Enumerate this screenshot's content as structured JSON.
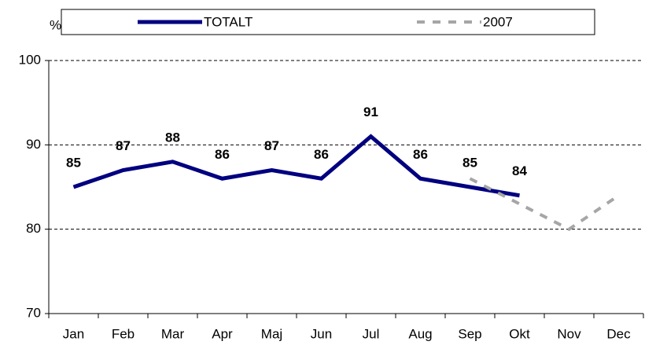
{
  "chart_data": {
    "type": "line",
    "y_label": "%",
    "categories": [
      "Jan",
      "Feb",
      "Mar",
      "Apr",
      "Maj",
      "Jun",
      "Jul",
      "Aug",
      "Sep",
      "Okt",
      "Nov",
      "Dec"
    ],
    "series": [
      {
        "name": "TOTALT",
        "color": "#000080",
        "dashed": false,
        "show_values": true,
        "values": [
          85,
          87,
          88,
          86,
          87,
          86,
          91,
          86,
          85,
          84,
          null,
          null
        ]
      },
      {
        "name": "2007",
        "color": "#a6a6a6",
        "dashed": true,
        "show_values": false,
        "values": [
          null,
          null,
          null,
          null,
          null,
          null,
          null,
          null,
          86,
          83,
          80,
          84
        ]
      }
    ],
    "ylim": [
      70,
      100
    ],
    "yticks": [
      70,
      80,
      90,
      100
    ],
    "grid": true,
    "legend": "top"
  }
}
